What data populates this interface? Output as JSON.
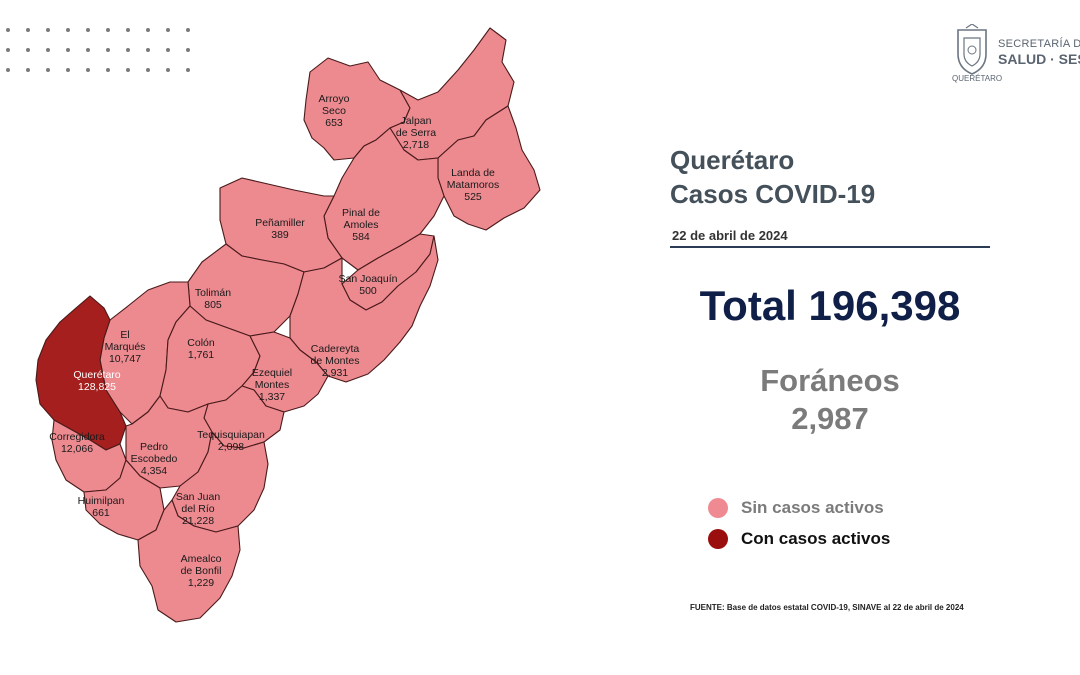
{
  "header": {
    "logo_line1": "SECRETARÍA DE",
    "logo_line2": "SALUD · SESEQ",
    "logo_line3": "QUERÉTARO"
  },
  "title": {
    "line1": "Querétaro",
    "line2": "Casos COVID-19"
  },
  "date": "22 de abril de 2024",
  "total": "Total 196,398",
  "foraneos": {
    "label": "Foráneos",
    "value": "2,987"
  },
  "legend": [
    {
      "label": "Sin casos activos",
      "color": "#f08a92",
      "text_color": "#7b7b7b"
    },
    {
      "label": "Con casos activos",
      "color": "#9a0e0e",
      "text_color": "#111111"
    }
  ],
  "colors": {
    "sin_casos": "#ec8a90",
    "con_casos": "#a41f1d",
    "border": "#3a1a1a"
  },
  "municipios": [
    {
      "name": "Arroyo Seco",
      "lines": [
        "Arroyo",
        "Seco"
      ],
      "cases": "653",
      "active": false
    },
    {
      "name": "Jalpan de Serra",
      "lines": [
        "Jalpan",
        "de Serra"
      ],
      "cases": "2,718",
      "active": false
    },
    {
      "name": "Landa de Matamoros",
      "lines": [
        "Landa de",
        "Matamoros"
      ],
      "cases": "525",
      "active": false
    },
    {
      "name": "Pinal de Amoles",
      "lines": [
        "Pinal de",
        "Amoles"
      ],
      "cases": "584",
      "active": false
    },
    {
      "name": "Peñamiller",
      "lines": [
        "Peñamiller"
      ],
      "cases": "389",
      "active": false
    },
    {
      "name": "San Joaquín",
      "lines": [
        "San Joaquín"
      ],
      "cases": "500",
      "active": false
    },
    {
      "name": "Tolimán",
      "lines": [
        "Tolimán"
      ],
      "cases": "805",
      "active": false
    },
    {
      "name": "El Marqués",
      "lines": [
        "El",
        "Marqués"
      ],
      "cases": "10,747",
      "active": false
    },
    {
      "name": "Colón",
      "lines": [
        "Colón"
      ],
      "cases": "1,761",
      "active": false
    },
    {
      "name": "Cadereyta de Montes",
      "lines": [
        "Cadereyta",
        "de Montes"
      ],
      "cases": "2,931",
      "active": false
    },
    {
      "name": "Querétaro",
      "lines": [
        "Querétaro"
      ],
      "cases": "128,825",
      "active": true
    },
    {
      "name": "Ezequiel Montes",
      "lines": [
        "Ezequiel",
        "Montes"
      ],
      "cases": "1,337",
      "active": false
    },
    {
      "name": "Corregidora",
      "lines": [
        "Corregidora"
      ],
      "cases": "12,066",
      "active": false
    },
    {
      "name": "Tequisquiapan",
      "lines": [
        "Tequisquiapan"
      ],
      "cases": "2,098",
      "active": false
    },
    {
      "name": "Pedro Escobedo",
      "lines": [
        "Pedro",
        "Escobedo"
      ],
      "cases": "4,354",
      "active": false
    },
    {
      "name": "Huimilpan",
      "lines": [
        "Huimilpan"
      ],
      "cases": "661",
      "active": false
    },
    {
      "name": "San Juan del Río",
      "lines": [
        "San Juan",
        "del Río"
      ],
      "cases": "21,228",
      "active": false
    },
    {
      "name": "Amealco de Bonfil",
      "lines": [
        "Amealco",
        "de Bonfil"
      ],
      "cases": "1,229",
      "active": false
    }
  ],
  "source": "FUENTE:  Base de datos estatal  COVID-19,  SINAVE   al 22 de abril de 2024"
}
